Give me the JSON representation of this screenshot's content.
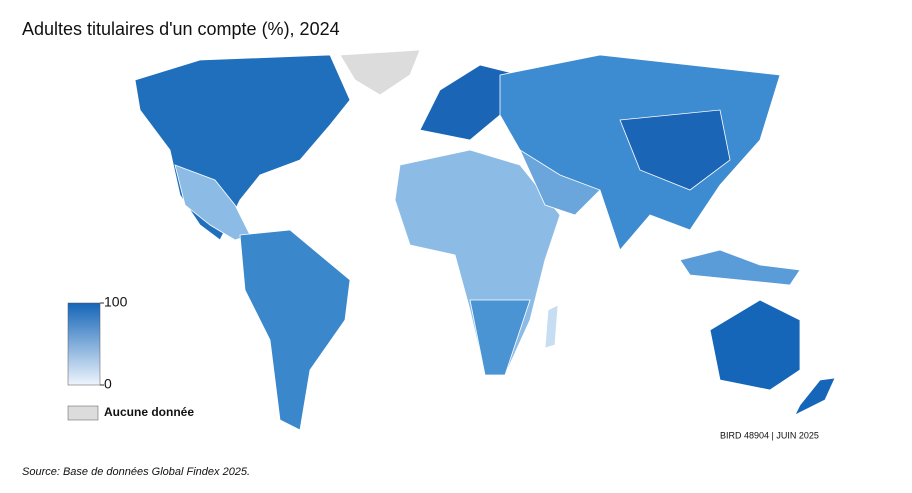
{
  "title": "Adultes titulaires d'un compte (%), 2024",
  "legend": {
    "max": 100,
    "min": 0,
    "no_data": "Aucune donnée"
  },
  "credit": "BIRD 48904 | JUIN 2025",
  "source": "Source: Base de données Global Findex 2025."
}
